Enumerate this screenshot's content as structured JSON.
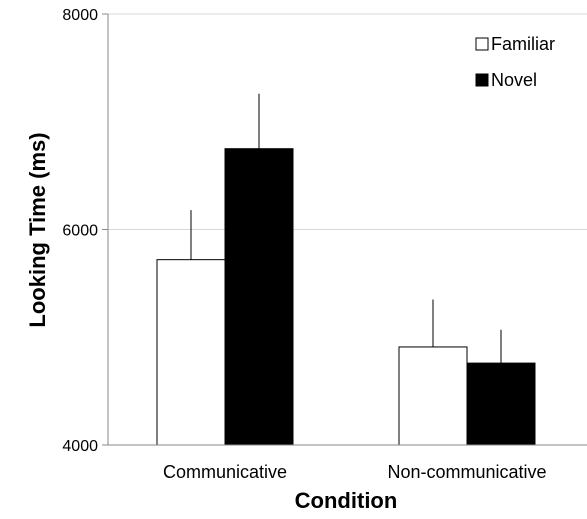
{
  "chart_data": {
    "type": "bar",
    "categories": [
      "Communicative",
      "Non-communicative"
    ],
    "series": [
      {
        "name": "Familiar",
        "color": "#ffffff",
        "values": [
          5720,
          4910
        ],
        "error": [
          460,
          440
        ]
      },
      {
        "name": "Novel",
        "color": "#000000",
        "values": [
          6750,
          4760
        ],
        "error": [
          510,
          310
        ]
      }
    ],
    "xlabel": "Condition",
    "ylabel": "Looking Time (ms)",
    "ylim": [
      4000,
      8000
    ],
    "yticks": [
      4000,
      6000,
      8000
    ],
    "grid": true,
    "legend": "top-right"
  }
}
